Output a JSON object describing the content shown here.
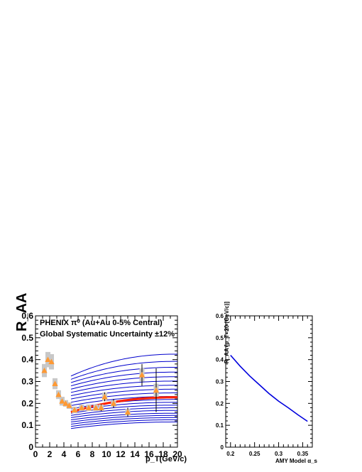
{
  "chart_data": [
    {
      "type": "scatter",
      "title": "",
      "xlabel": "p_T(GeV/c)",
      "ylabel": "R_AA",
      "xlim": [
        0,
        20
      ],
      "ylim": [
        0,
        0.6
      ],
      "x_ticks": [
        "0",
        "2",
        "4",
        "6",
        "8",
        "10",
        "12",
        "14",
        "16",
        "18",
        "20"
      ],
      "y_ticks": [
        "0",
        "0.1",
        "0.2",
        "0.3",
        "0.4",
        "0.5",
        "0.6"
      ],
      "grid": false,
      "annotations": [
        "PHENIX π⁰ (Au+Au 0-5% Central)",
        "Global Systematic Uncertainty ±12%"
      ],
      "series": [
        {
          "kind": "data",
          "color": "#ff9933",
          "points": [
            {
              "x": 1.25,
              "y": 0.35,
              "err": 0.01,
              "sys": 0.03
            },
            {
              "x": 1.75,
              "y": 0.4,
              "err": 0.01,
              "sys": 0.035
            },
            {
              "x": 2.25,
              "y": 0.39,
              "err": 0.01,
              "sys": 0.035
            },
            {
              "x": 2.75,
              "y": 0.29,
              "err": 0.01,
              "sys": 0.025
            },
            {
              "x": 3.25,
              "y": 0.24,
              "err": 0.01,
              "sys": 0.02
            },
            {
              "x": 3.75,
              "y": 0.21,
              "err": 0.005,
              "sys": 0.02
            },
            {
              "x": 4.25,
              "y": 0.2,
              "err": 0.005,
              "sys": 0.015
            },
            {
              "x": 4.75,
              "y": 0.19,
              "err": 0.005,
              "sys": 0.015
            },
            {
              "x": 5.5,
              "y": 0.17,
              "err": 0.005,
              "sys": 0.015
            },
            {
              "x": 6.5,
              "y": 0.18,
              "err": 0.005,
              "sys": 0.015
            },
            {
              "x": 7.5,
              "y": 0.18,
              "err": 0.01,
              "sys": 0.015
            },
            {
              "x": 8.5,
              "y": 0.18,
              "err": 0.01,
              "sys": 0.015
            },
            {
              "x": 9.25,
              "y": 0.18,
              "err": 0.015,
              "sys": 0.015
            },
            {
              "x": 9.75,
              "y": 0.23,
              "err": 0.02,
              "sys": 0.02
            },
            {
              "x": 11,
              "y": 0.2,
              "err": 0.02,
              "sys": 0.015
            },
            {
              "x": 13,
              "y": 0.16,
              "err": 0.02,
              "sys": 0.015
            },
            {
              "x": 15,
              "y": 0.33,
              "err": 0.05,
              "sys": 0.03
            },
            {
              "x": 17,
              "y": 0.26,
              "err": 0.1,
              "sys": 0.03
            }
          ]
        },
        {
          "kind": "model-family",
          "color": "#0000cc",
          "x_range": [
            5,
            20
          ],
          "curves": [
            [
              0.085,
              0.115
            ],
            [
              0.095,
              0.125
            ],
            [
              0.105,
              0.135
            ],
            [
              0.115,
              0.145
            ],
            [
              0.125,
              0.155
            ],
            [
              0.135,
              0.168
            ],
            [
              0.145,
              0.18
            ],
            [
              0.155,
              0.192
            ],
            [
              0.165,
              0.205
            ],
            [
              0.175,
              0.218
            ],
            [
              0.19,
              0.232
            ],
            [
              0.205,
              0.248
            ],
            [
              0.22,
              0.265
            ],
            [
              0.235,
              0.283
            ],
            [
              0.25,
              0.302
            ],
            [
              0.265,
              0.322
            ],
            [
              0.28,
              0.343
            ],
            [
              0.295,
              0.365
            ],
            [
              0.31,
              0.392
            ],
            [
              0.325,
              0.425
            ]
          ]
        },
        {
          "kind": "best-fit",
          "color": "#ff2200",
          "x_range": [
            5,
            20
          ],
          "curve": [
            0.16,
            0.228
          ]
        }
      ]
    },
    {
      "type": "line",
      "title": "",
      "xlabel": "AMY Model α_s",
      "ylabel": "R_AA [p_T=20 (GeV/c)]",
      "xlim": [
        0.19,
        0.37
      ],
      "ylim": [
        0,
        0.6
      ],
      "x_ticks": [
        "0.2",
        "0.25",
        "0.3",
        "0.35"
      ],
      "y_ticks": [
        "0",
        "0.1",
        "0.2",
        "0.3",
        "0.4",
        "0.5",
        "0.6"
      ],
      "grid": false,
      "series": [
        {
          "color": "#0000dd",
          "x": [
            0.2,
            0.22,
            0.24,
            0.26,
            0.28,
            0.3,
            0.32,
            0.34,
            0.36
          ],
          "y": [
            0.42,
            0.37,
            0.325,
            0.285,
            0.245,
            0.21,
            0.18,
            0.148,
            0.118
          ]
        }
      ]
    }
  ]
}
